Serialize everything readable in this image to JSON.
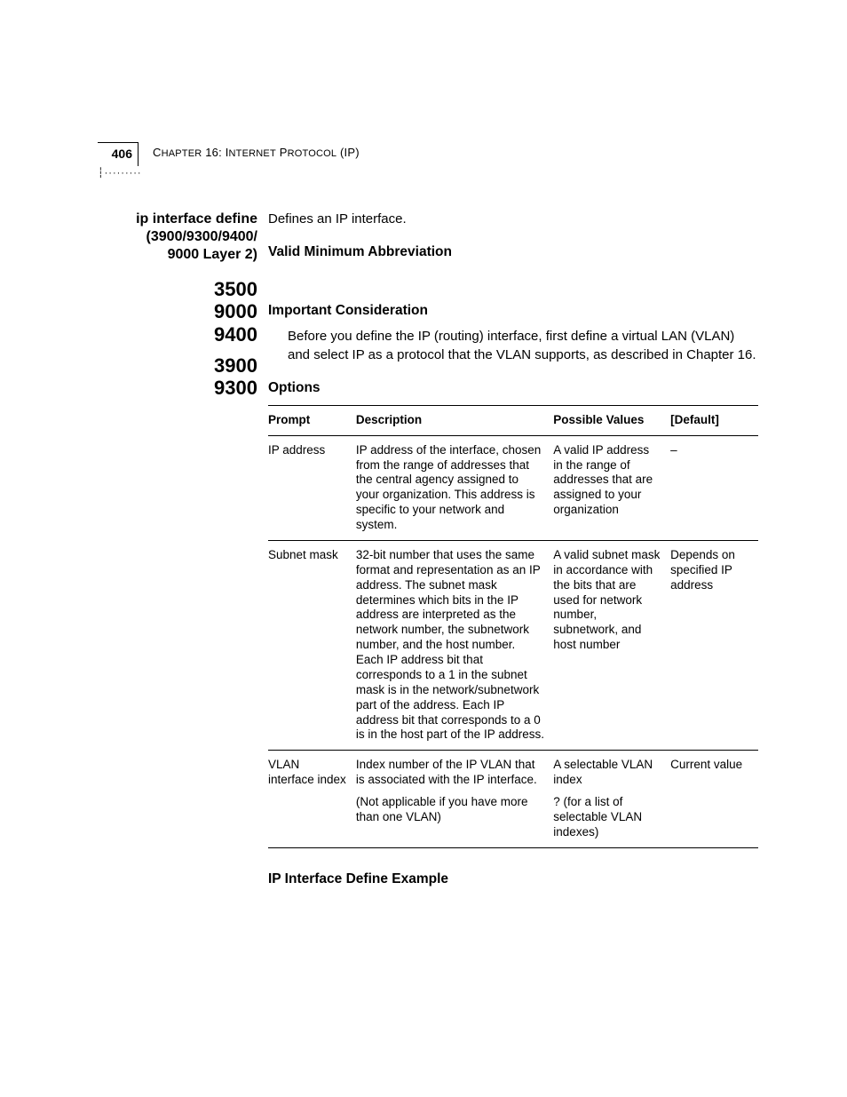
{
  "header": {
    "page_number": "406",
    "chapter_prefix": "C",
    "chapter_word_rest": "HAPTER",
    "chapter_num": " 16: I",
    "chapter_word2_rest": "NTERNET",
    "chapter_word3_first": " P",
    "chapter_word3_rest": "ROTOCOL",
    "chapter_suffix": " (IP)",
    "dotted": "┆·········"
  },
  "left": {
    "cmd_title_lines": [
      "ip interface define",
      "(3900/9300/9400/",
      "9000 Layer 2)"
    ],
    "models": [
      "3500",
      "9000",
      "9400",
      "",
      "3900",
      "9300"
    ]
  },
  "main": {
    "intro": "Defines an IP interface.",
    "valid_abbrev_heading": "Valid Minimum Abbreviation",
    "consideration_heading": "Important Consideration",
    "consideration_body": "Before you define the IP (routing) interface, first define a virtual LAN (VLAN) and select IP as a protocol that the VLAN supports, as described in Chapter 16.",
    "options_heading": "Options",
    "table": {
      "headers": [
        "Prompt",
        "Description",
        "Possible Values",
        "[Default]"
      ],
      "rows": [
        {
          "prompt": "IP address",
          "description": "IP address of the interface, chosen from the range of addresses that the central agency assigned to your organization. This address is specific to your network and system.",
          "possible": "A valid IP address in the range of addresses that are assigned to your organization",
          "default": "–"
        },
        {
          "prompt": "Subnet mask",
          "description": "32-bit number that uses the same format and representation as an IP address. The subnet mask determines which bits in the IP address are interpreted as the network number, the subnetwork number, and the host number. Each IP address bit that corresponds to a 1 in the subnet mask is in the network/subnetwork part of the address. Each IP address bit that corresponds to a 0 is in the host part of the IP address.",
          "possible": "A valid subnet mask in accordance with the bits that are used for network number, subnetwork, and host number",
          "default": "Depends on specified IP address"
        },
        {
          "prompt": "VLAN interface index",
          "description": "Index number of the IP VLAN that is associated with the IP interface.",
          "description2": "(Not applicable if you have more than one VLAN)",
          "possible": "A selectable VLAN index",
          "possible2": "? (for a list of selectable VLAN indexes)",
          "default": "Current value"
        }
      ]
    },
    "example_heading": "IP Interface Define Example"
  }
}
